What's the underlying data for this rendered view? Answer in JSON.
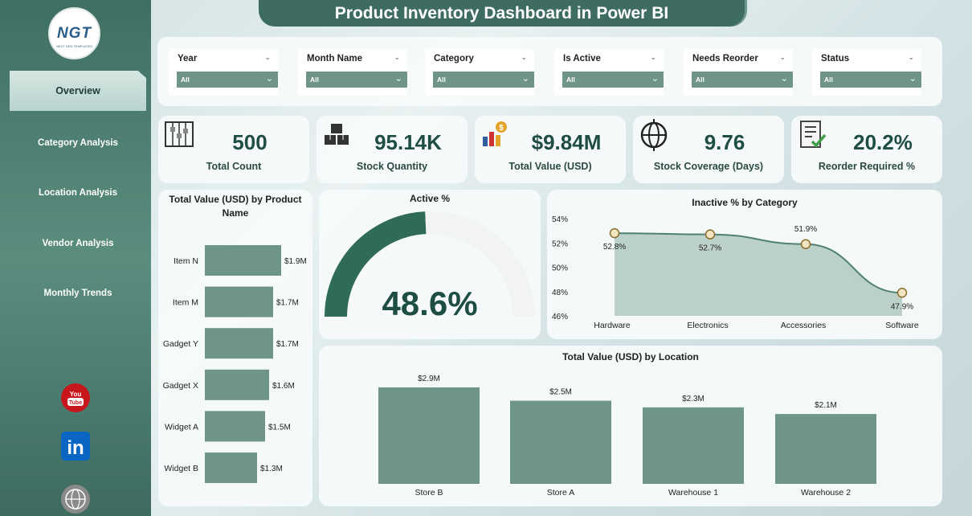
{
  "header": {
    "title": "Product Inventory Dashboard in Power BI"
  },
  "logo": {
    "text": "NGT",
    "subtitle": "NEXT GEN TEMPLATES"
  },
  "sidebar": {
    "items": [
      {
        "label": "Overview",
        "active": true
      },
      {
        "label": "Category Analysis"
      },
      {
        "label": "Location Analysis"
      },
      {
        "label": "Vendor Analysis"
      },
      {
        "label": "Monthly Trends"
      }
    ],
    "social": [
      {
        "icon": "youtube-icon",
        "label": "You Tube"
      },
      {
        "icon": "linkedin-icon",
        "label": "in"
      },
      {
        "icon": "globe-icon",
        "label": "WWW"
      }
    ]
  },
  "filters": [
    {
      "label": "Year",
      "value": "All"
    },
    {
      "label": "Month Name",
      "value": "All"
    },
    {
      "label": "Category",
      "value": "All"
    },
    {
      "label": "Is Active",
      "value": "All"
    },
    {
      "label": "Needs Reorder",
      "value": "All"
    },
    {
      "label": "Status",
      "value": "All"
    }
  ],
  "kpis": [
    {
      "value": "500",
      "label": "Total Count",
      "icon": "abacus-icon"
    },
    {
      "value": "95.14K",
      "label": "Stock Quantity",
      "icon": "boxes-icon"
    },
    {
      "value": "$9.84M",
      "label": "Total Value (USD)",
      "icon": "money-chart-icon"
    },
    {
      "value": "9.76",
      "label": "Stock Coverage (Days)",
      "icon": "globe-target-icon"
    },
    {
      "value": "20.2%",
      "label": "Reorder Required %",
      "icon": "checklist-icon"
    }
  ],
  "colors": {
    "accent": "#3e6c60",
    "bar": "#6e9588",
    "gauge": "#2f6b58",
    "area": "#aac3bb",
    "marker": "#f2e6c2"
  },
  "chart_data": [
    {
      "type": "bar",
      "orientation": "horizontal",
      "title": "Total Value (USD) by Product Name",
      "categories": [
        "Item N",
        "Item M",
        "Gadget Y",
        "Gadget X",
        "Widget A",
        "Widget B"
      ],
      "values": [
        1.9,
        1.7,
        1.7,
        1.6,
        1.5,
        1.3
      ],
      "data_labels": [
        "$1.9M",
        "$1.7M",
        "$1.7M",
        "$1.6M",
        "$1.5M",
        "$1.3M"
      ],
      "unit": "M USD"
    },
    {
      "type": "gauge",
      "title": "Active %",
      "value": 48.6,
      "max": 100,
      "display": "48.6%"
    },
    {
      "type": "area",
      "title": "Inactive % by Category",
      "categories": [
        "Hardware",
        "Electronics",
        "Accessories",
        "Software"
      ],
      "values": [
        52.8,
        52.7,
        51.9,
        47.9
      ],
      "data_labels": [
        "52.8%",
        "52.7%",
        "51.9%",
        "47.9%"
      ],
      "y_ticks": [
        "54%",
        "52%",
        "50%",
        "48%",
        "46%"
      ],
      "ylim": [
        46,
        54
      ]
    },
    {
      "type": "bar",
      "title": "Total Value (USD) by Location",
      "categories": [
        "Store B",
        "Store A",
        "Warehouse 1",
        "Warehouse 2"
      ],
      "values": [
        2.9,
        2.5,
        2.3,
        2.1
      ],
      "data_labels": [
        "$2.9M",
        "$2.5M",
        "$2.3M",
        "$2.1M"
      ],
      "unit": "M USD"
    }
  ]
}
